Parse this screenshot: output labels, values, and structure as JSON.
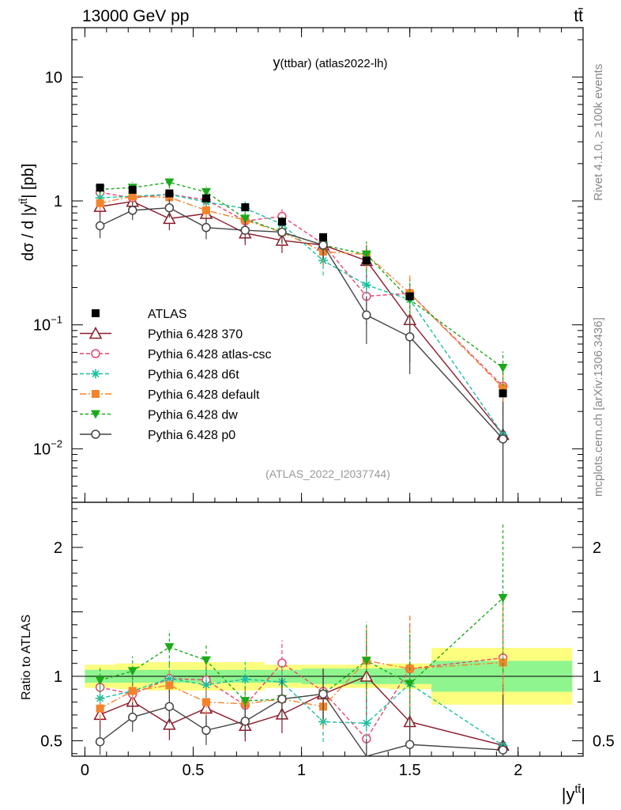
{
  "header": {
    "left": "13000 GeV pp",
    "right": "tt̄"
  },
  "side_labels": {
    "rivet": "Rivet 4.1.0, ≥ 100k events",
    "mcplots": "mcplots.cern.ch [arXiv:1306.3436]"
  },
  "chart_data": {
    "type": "line",
    "title": "y(ttbar) (atlas2022-lh)",
    "title_main": "y",
    "title_sub": "(ttbar) (atlas2022-lh)",
    "analysis_id": "(ATLAS_2022_I2037744)",
    "ylabel": "dσ / d |yᵗᵗ̄| [pb]",
    "ylabel_main": "dσ / d |y",
    "ylabel_sup": "tt̄",
    "ylabel_unit": "| [pb]",
    "ratio_ylabel": "Ratio to ATLAS",
    "xlabel_main": "|y",
    "xlabel_sup": "tt̄",
    "xlabel_end": "|",
    "xlim": [
      -0.06,
      2.3
    ],
    "ylim": [
      0.0037,
      25
    ],
    "yscale": "log",
    "ratio_ylim": [
      0.38,
      2.35
    ],
    "x_ticks": [
      0,
      0.5,
      1,
      1.5,
      2
    ],
    "x_tick_labels": [
      "0",
      "0.5",
      "1",
      "1.5",
      "2"
    ],
    "y_ticks": [
      {
        "value": 0.01,
        "base": "10",
        "exp": "−2"
      },
      {
        "value": 0.1,
        "base": "10",
        "exp": "−1"
      },
      {
        "value": 1,
        "base": "1",
        "exp": ""
      },
      {
        "value": 10,
        "base": "10",
        "exp": ""
      }
    ],
    "ratio_ticks": [
      {
        "value": 0.5,
        "label": "0.5"
      },
      {
        "value": 1,
        "label": "1"
      },
      {
        "value": 2,
        "label": "2"
      }
    ],
    "bins": [
      0,
      0.14,
      0.29,
      0.47,
      0.65,
      0.83,
      1.0,
      1.2,
      1.4,
      1.6,
      2.25
    ],
    "x": [
      0.07,
      0.22,
      0.39,
      0.56,
      0.74,
      0.91,
      1.1,
      1.3,
      1.5,
      1.93
    ],
    "data": {
      "name": "ATLAS",
      "values": [
        1.28,
        1.23,
        1.15,
        1.05,
        0.89,
        0.68,
        0.51,
        0.33,
        0.17,
        0.028
      ],
      "band_inner": [
        0.05,
        0.05,
        0.05,
        0.05,
        0.05,
        0.05,
        0.06,
        0.06,
        0.06,
        0.12
      ],
      "band_outer": [
        0.09,
        0.1,
        0.11,
        0.11,
        0.11,
        0.09,
        0.09,
        0.09,
        0.1,
        0.22
      ]
    },
    "series": [
      {
        "name": "Pythia 6.428 370",
        "color": "#8b1a2b",
        "dash": "",
        "marker": "triangle-open",
        "values": [
          0.9,
          0.99,
          0.72,
          0.79,
          0.55,
          0.48,
          0.44,
          0.33,
          0.11,
          0.013
        ],
        "errors": [
          0.15,
          0.16,
          0.14,
          0.14,
          0.11,
          0.1,
          0.1,
          0.11,
          0.06,
          0.013
        ]
      },
      {
        "name": "Pythia 6.428 atlas-csc",
        "color": "#e8456d",
        "dash": "5,3",
        "marker": "circle-open",
        "values": [
          1.17,
          1.06,
          1.13,
          1.02,
          0.69,
          0.75,
          0.45,
          0.17,
          0.18,
          0.032
        ],
        "errors": [
          0.12,
          0.12,
          0.13,
          0.12,
          0.1,
          0.12,
          0.1,
          0.07,
          0.07,
          0.013
        ]
      },
      {
        "name": "Pythia 6.428 d6t",
        "color": "#1bc0a0",
        "dash": "5,3",
        "marker": "star",
        "values": [
          1.06,
          1.09,
          1.13,
          0.98,
          0.87,
          0.65,
          0.33,
          0.21,
          0.16,
          0.013
        ],
        "errors": [
          0.12,
          0.12,
          0.13,
          0.12,
          0.12,
          0.1,
          0.08,
          0.07,
          0.06,
          0.009
        ]
      },
      {
        "name": "Pythia 6.428 default",
        "color": "#f5832a",
        "dash": "8,3,2,3",
        "marker": "square",
        "values": [
          0.96,
          1.09,
          1.07,
          0.84,
          0.7,
          0.56,
          0.39,
          0.37,
          0.18,
          0.031
        ],
        "errors": [
          0.12,
          0.13,
          0.13,
          0.12,
          0.11,
          0.1,
          0.09,
          0.09,
          0.07,
          0.013
        ]
      },
      {
        "name": "Pythia 6.428 dw",
        "color": "#1aaa1a",
        "dash": "4,3",
        "marker": "triangle-down",
        "values": [
          1.24,
          1.28,
          1.41,
          1.18,
          0.72,
          0.56,
          0.44,
          0.37,
          0.16,
          0.045
        ],
        "errors": [
          0.13,
          0.14,
          0.15,
          0.13,
          0.11,
          0.1,
          0.1,
          0.1,
          0.07,
          0.016
        ]
      },
      {
        "name": "Pythia 6.428 p0",
        "color": "#444444",
        "dash": "",
        "marker": "circle-open",
        "values": [
          0.63,
          0.84,
          0.88,
          0.61,
          0.58,
          0.56,
          0.44,
          0.12,
          0.08,
          0.012
        ],
        "errors": [
          0.13,
          0.14,
          0.15,
          0.12,
          0.11,
          0.11,
          0.1,
          0.05,
          0.04,
          0.012
        ]
      }
    ]
  }
}
